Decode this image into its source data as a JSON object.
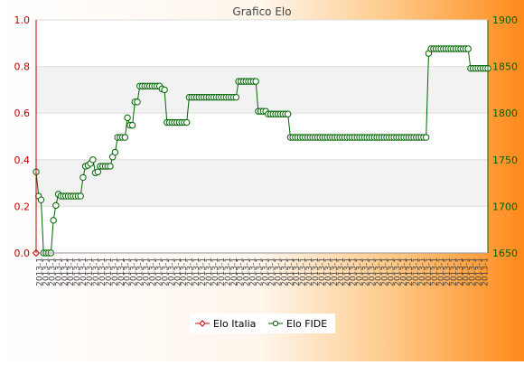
{
  "chart_data": {
    "type": "line",
    "title": "Grafico Elo",
    "xlabel": "",
    "ylabel": "",
    "y_left": {
      "ylim": [
        0.0,
        1.0
      ],
      "ticks": [
        "0.0",
        "0.2",
        "0.4",
        "0.6",
        "0.8",
        "1.0"
      ],
      "color": "#c00000"
    },
    "y_right": {
      "ylim": [
        1650,
        1900
      ],
      "ticks": [
        "1650",
        "1700",
        "1750",
        "1800",
        "1850",
        "1900"
      ],
      "color": "#006400"
    },
    "x_tick_pattern": "2013-1",
    "x_tick_count": 72,
    "legend_position": "bottom-center",
    "grid": true,
    "series": [
      {
        "name": "Elo Italia",
        "axis": "left",
        "color": "#cc0000",
        "values": [
          0.0
        ]
      },
      {
        "name": "Elo FIDE",
        "axis": "right",
        "color": "#006400",
        "values": [
          1737,
          1711,
          1707,
          1650,
          1650,
          1650,
          1650,
          1685,
          1701,
          1713,
          1711,
          1711,
          1711,
          1711,
          1711,
          1711,
          1711,
          1711,
          1711,
          1731,
          1743,
          1744,
          1746,
          1750,
          1736,
          1737,
          1743,
          1743,
          1743,
          1743,
          1743,
          1753,
          1758,
          1774,
          1774,
          1774,
          1774,
          1795,
          1787,
          1787,
          1812,
          1812,
          1829,
          1829,
          1829,
          1829,
          1829,
          1829,
          1829,
          1829,
          1829,
          1826,
          1825,
          1790,
          1790,
          1790,
          1790,
          1790,
          1790,
          1790,
          1790,
          1790,
          1817,
          1817,
          1817,
          1817,
          1817,
          1817,
          1817,
          1817,
          1817,
          1817,
          1817,
          1817,
          1817,
          1817,
          1817,
          1817,
          1817,
          1817,
          1817,
          1817,
          1834,
          1834,
          1834,
          1834,
          1834,
          1834,
          1834,
          1834,
          1802,
          1802,
          1802,
          1802,
          1799,
          1799,
          1799,
          1799,
          1799,
          1799,
          1799,
          1799,
          1799,
          1774,
          1774,
          1774,
          1774,
          1774,
          1774,
          1774,
          1774,
          1774,
          1774,
          1774,
          1774,
          1774,
          1774,
          1774,
          1774,
          1774,
          1774,
          1774,
          1774,
          1774,
          1774,
          1774,
          1774,
          1774,
          1774,
          1774,
          1774,
          1774,
          1774,
          1774,
          1774,
          1774,
          1774,
          1774,
          1774,
          1774,
          1774,
          1774,
          1774,
          1774,
          1774,
          1774,
          1774,
          1774,
          1774,
          1774,
          1774,
          1774,
          1774,
          1774,
          1774,
          1774,
          1774,
          1774,
          1774,
          1864,
          1869,
          1869,
          1869,
          1869,
          1869,
          1869,
          1869,
          1869,
          1869,
          1869,
          1869,
          1869,
          1869,
          1869,
          1869,
          1869,
          1848,
          1848,
          1848,
          1848,
          1848,
          1848,
          1848,
          1848
        ]
      }
    ]
  }
}
